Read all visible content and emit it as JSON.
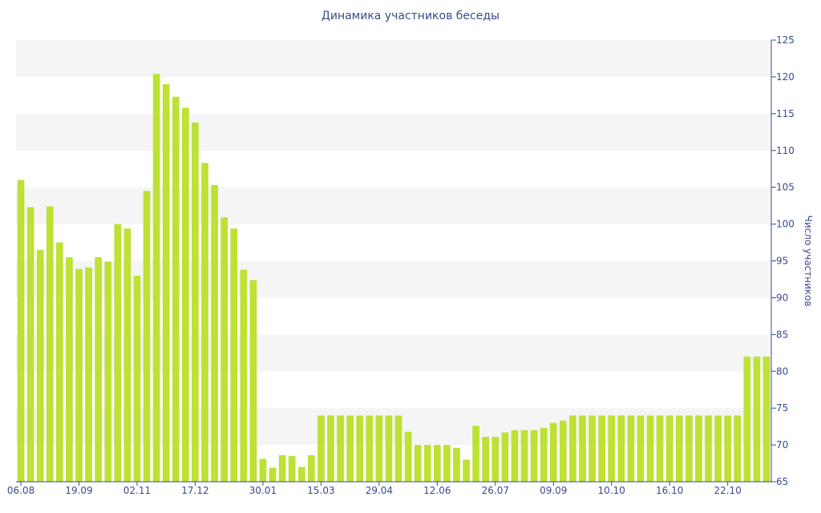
{
  "chart_data": {
    "type": "bar",
    "title": "Динамика участников беседы",
    "ylabel": "Число участников",
    "xlabel": "",
    "ylim": [
      65,
      125
    ],
    "yticks": [
      65,
      70,
      75,
      80,
      85,
      90,
      95,
      100,
      105,
      110,
      115,
      120,
      125
    ],
    "y_axis_side": "right",
    "grid": "alternating horizontal bands",
    "bar_color": "#bde134",
    "band_color": "#f5f5f5",
    "text_color": "#3a4b8c",
    "x_tick_labels": [
      {
        "bar": 0,
        "label": "06.08"
      },
      {
        "bar": 6,
        "label": "19.09"
      },
      {
        "bar": 12,
        "label": "02.11"
      },
      {
        "bar": 18,
        "label": "17.12"
      },
      {
        "bar": 25,
        "label": "30.01"
      },
      {
        "bar": 31,
        "label": "15.03"
      },
      {
        "bar": 37,
        "label": "29.04"
      },
      {
        "bar": 43,
        "label": "12.06"
      },
      {
        "bar": 49,
        "label": "26.07"
      },
      {
        "bar": 55,
        "label": "09.09"
      },
      {
        "bar": 61,
        "label": "10.10"
      },
      {
        "bar": 67,
        "label": "16.10"
      },
      {
        "bar": 73,
        "label": "22.10"
      }
    ],
    "values": [
      106,
      102.3,
      96.5,
      102.4,
      97.5,
      95.5,
      93.9,
      94.1,
      95.5,
      94.9,
      100,
      99.4,
      93,
      104.5,
      120.4,
      119,
      117.3,
      115.8,
      113.8,
      108.3,
      105.3,
      100.9,
      99.4,
      93.8,
      92.4,
      68.1,
      66.9,
      68.6,
      68.5,
      67,
      68.6,
      74,
      74,
      74,
      74,
      74,
      74,
      74,
      74,
      74,
      71.8,
      70,
      70,
      70,
      70,
      69.6,
      68,
      72.6,
      71.1,
      71.1,
      71.7,
      72,
      72,
      72,
      72.3,
      73,
      73.3,
      74,
      74,
      74,
      74,
      74,
      74,
      74,
      74,
      74,
      74,
      74,
      74,
      74,
      74,
      74,
      74,
      74,
      74,
      82,
      82,
      82
    ]
  }
}
